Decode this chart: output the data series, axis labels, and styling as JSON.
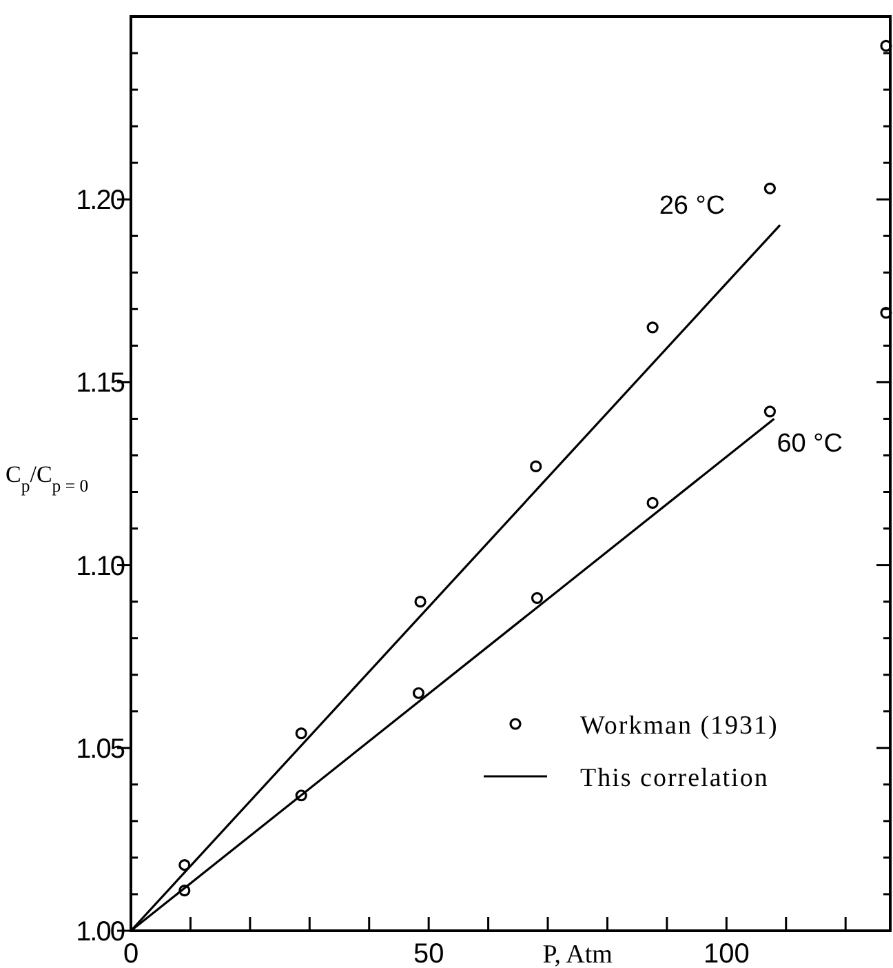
{
  "chart_data": {
    "type": "scatter",
    "xlabel": "P, Atm",
    "ylabel": "C$_{p}$/C$_{p = 0}$",
    "xlim": [
      0,
      127.5
    ],
    "ylim": [
      1.0,
      1.25
    ],
    "xticks": [
      0,
      {
        "value": 10,
        "label": null
      },
      {
        "value": 20,
        "label": null
      },
      {
        "value": 30,
        "label": null
      },
      {
        "value": 40,
        "label": null
      },
      50,
      {
        "value": 60,
        "label": null
      },
      {
        "value": 70,
        "label": null
      },
      {
        "value": 80,
        "label": null
      },
      {
        "value": 90,
        "label": null
      },
      100,
      {
        "value": 110,
        "label": null
      },
      {
        "value": 120,
        "label": null
      }
    ],
    "yticks": [
      {
        "value": 1.0,
        "label": "1.00"
      },
      {
        "value": 1.01,
        "label": null
      },
      {
        "value": 1.02,
        "label": null
      },
      {
        "value": 1.03,
        "label": null
      },
      {
        "value": 1.04,
        "label": null
      },
      {
        "value": 1.05,
        "label": "1.05"
      },
      {
        "value": 1.06,
        "label": null
      },
      {
        "value": 1.07,
        "label": null
      },
      {
        "value": 1.08,
        "label": null
      },
      {
        "value": 1.09,
        "label": null
      },
      {
        "value": 1.1,
        "label": "1.10"
      },
      {
        "value": 1.11,
        "label": null
      },
      {
        "value": 1.12,
        "label": null
      },
      {
        "value": 1.13,
        "label": null
      },
      {
        "value": 1.14,
        "label": null
      },
      {
        "value": 1.15,
        "label": "1.15"
      },
      {
        "value": 1.16,
        "label": null
      },
      {
        "value": 1.17,
        "label": null
      },
      {
        "value": 1.18,
        "label": null
      },
      {
        "value": 1.19,
        "label": null
      },
      {
        "value": 1.2,
        "label": "1.20"
      },
      {
        "value": 1.21,
        "label": null
      },
      {
        "value": 1.22,
        "label": null
      },
      {
        "value": 1.23,
        "label": null
      },
      {
        "value": 1.24,
        "label": null
      }
    ],
    "marker": "circle",
    "legend": "bottom right",
    "grid": false,
    "series": [
      {
        "name": "Workman (1931)",
        "color": "#000000",
        "x": [
          9,
          28.6,
          48.6,
          68,
          87.6,
          107.3,
          126.8
        ],
        "values": [
          1.018,
          1.054,
          1.09,
          1.127,
          1.165,
          1.203,
          1.242
        ]
      },
      {
        "color": "#000000",
        "x": [
          9,
          28.6,
          48.3,
          68.2,
          87.6,
          107.3,
          126.8
        ],
        "values": [
          1.011,
          1.037,
          1.065,
          1.091,
          1.117,
          1.142,
          1.169
        ]
      },
      {
        "name": "This correlation",
        "type": "line",
        "marker": "none",
        "color": "#000000",
        "x": [
          0,
          109
        ],
        "values": [
          1.0,
          1.193
        ]
      },
      {
        "type": "line",
        "marker": "none",
        "color": "#000000",
        "x": [
          0,
          108
        ],
        "values": [
          1.0,
          1.14
        ]
      }
    ],
    "annotations": [
      "26 °C",
      "60 °C"
    ]
  }
}
